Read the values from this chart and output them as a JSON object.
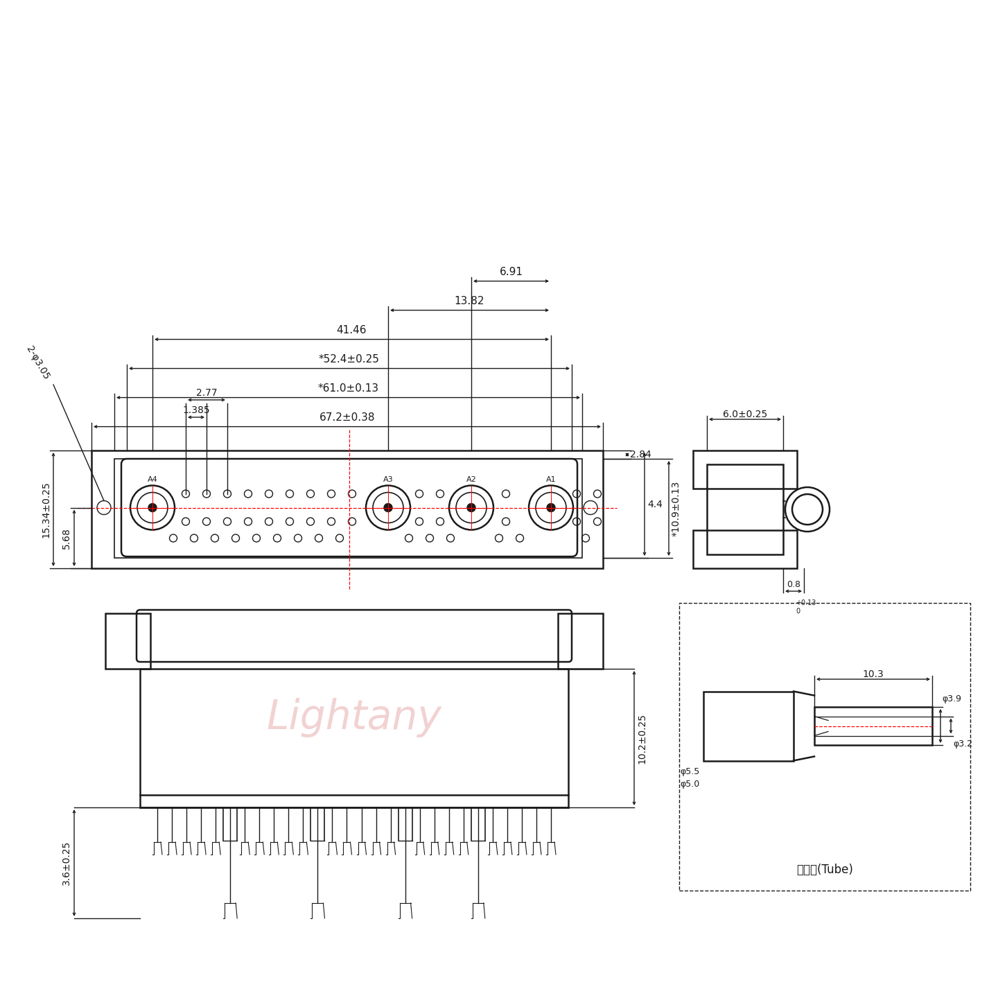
{
  "bg_color": "#ffffff",
  "line_color": "#1a1a1a",
  "red_color": "#ff0000",
  "watermark_color": "#e8b4b4",
  "watermark_text": "Lightany",
  "dims_top": {
    "d672": "67.2±0.38",
    "d610": "*61.0±0.13",
    "d524": "*52.4±0.25",
    "d4146": "41.46",
    "d1382": "13.82",
    "d277": "2.77",
    "d1385": "1.385",
    "d691": "6.91",
    "d284": "2.84",
    "d44": "4.4",
    "d1534": "15.34±0.25",
    "d568": "5.68",
    "d305": "2-φ3.05",
    "d109": "*10.9±0.13",
    "d60": "6.0±0.25",
    "d08": "0.8  0"
  },
  "dims_bottom": {
    "d36": "3.6±0.25",
    "d102": "10.2±0.25"
  },
  "tube_box": {
    "label": "屏蔽管(Tube)",
    "d103": "10.3",
    "d39": "φ3.9",
    "d32": "φ3.2",
    "d50": "φ5.0",
    "d55": "φ5.5"
  }
}
